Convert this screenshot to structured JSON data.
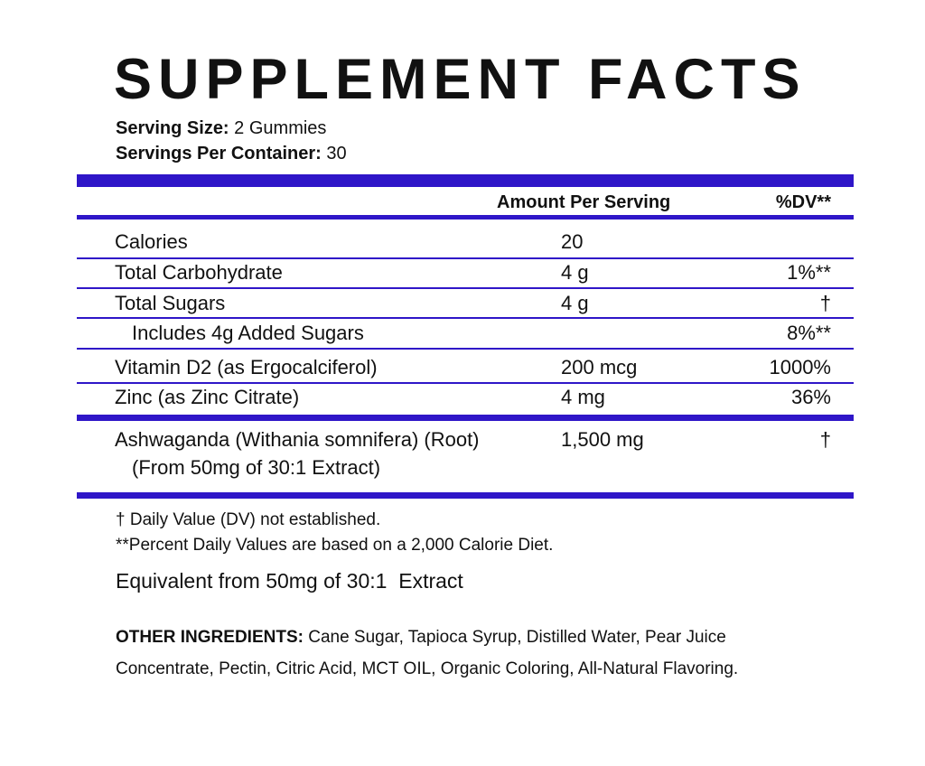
{
  "title": "SUPPLEMENT FACTS",
  "serving_size": {
    "label": "Serving Size:",
    "value": "2 Gummies"
  },
  "servings_per_container": {
    "label": "Servings Per Container:",
    "value": "30"
  },
  "table": {
    "headers": {
      "amount": "Amount Per Serving",
      "dv": "%DV**"
    },
    "rows": [
      {
        "name": "Calories",
        "amount": "20"
      },
      {
        "name": "Total Carbohydrate",
        "amount": "4 g",
        "dv": "1%**"
      },
      {
        "name": "Total Sugars",
        "amount": "4 g",
        "dv": "†"
      },
      {
        "name": "Includes 4g Added Sugars",
        "dv": "8%**",
        "indent": true
      },
      {
        "name": "Vitamin D2 (as Ergocalciferol)",
        "amount": "200 mcg",
        "dv": "1000%"
      },
      {
        "name": "Zinc (as Zinc Citrate)",
        "amount": "4 mg",
        "dv": "36%"
      },
      {
        "name": "Ashwaganda (Withania somnifera) (Root)",
        "sub": "(From 50mg of 30:1 Extract)",
        "amount": "1,500 mg",
        "dv": "†"
      }
    ]
  },
  "footnotes": [
    "† Daily Value (DV) not established.",
    "**Percent Daily Values are based on a 2,000 Calorie Diet."
  ],
  "equivalent": "Equivalent from 50mg of 30:1  Extract",
  "other_ingredients": {
    "label": "OTHER INGREDIENTS:",
    "lines": [
      "Cane Sugar, Tapioca Syrup, Distilled Water, Pear Juice",
      "Concentrate, Pectin, Citric Acid, MCT OIL, Organic Coloring, All-Natural Flavoring."
    ]
  }
}
